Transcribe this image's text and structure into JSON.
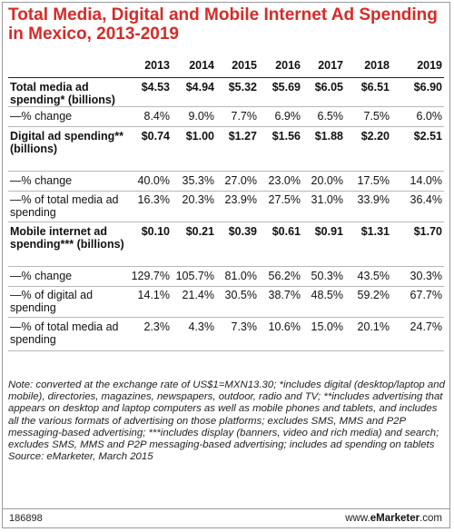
{
  "chart_data": {
    "type": "table",
    "title": "Total Media, Digital and Mobile Internet Ad Spending in Mexico, 2013-2019",
    "columns": [
      "2013",
      "2014",
      "2015",
      "2016",
      "2017",
      "2018",
      "2019"
    ],
    "rows": [
      {
        "label": "Total media ad spending* (billions)",
        "values": [
          "$4.53",
          "$4.94",
          "$5.32",
          "$5.69",
          "$6.05",
          "$6.51",
          "$6.90"
        ]
      },
      {
        "label": "—% change",
        "values": [
          "8.4%",
          "9.0%",
          "7.7%",
          "6.9%",
          "6.5%",
          "7.5%",
          "6.0%"
        ]
      },
      {
        "label": "Digital ad spending** (billions)",
        "values": [
          "$0.74",
          "$1.00",
          "$1.27",
          "$1.56",
          "$1.88",
          "$2.20",
          "$2.51"
        ]
      },
      {
        "label": "—% change",
        "values": [
          "40.0%",
          "35.3%",
          "27.0%",
          "23.0%",
          "20.0%",
          "17.5%",
          "14.0%"
        ]
      },
      {
        "label": "—% of total media ad spending",
        "values": [
          "16.3%",
          "20.3%",
          "23.9%",
          "27.5%",
          "31.0%",
          "33.9%",
          "36.4%"
        ]
      },
      {
        "label": "Mobile internet ad spending*** (billions)",
        "values": [
          "$0.10",
          "$0.21",
          "$0.39",
          "$0.61",
          "$0.91",
          "$1.31",
          "$1.70"
        ]
      },
      {
        "label": "—% change",
        "values": [
          "129.7%",
          "105.7%",
          "81.0%",
          "56.2%",
          "50.3%",
          "43.5%",
          "30.3%"
        ]
      },
      {
        "label": "—% of digital ad spending",
        "values": [
          "14.1%",
          "21.4%",
          "30.5%",
          "38.7%",
          "48.5%",
          "59.2%",
          "67.7%"
        ]
      },
      {
        "label": "—% of total media ad spending",
        "values": [
          "2.3%",
          "4.3%",
          "7.3%",
          "10.6%",
          "15.0%",
          "20.1%",
          "24.7%"
        ]
      }
    ],
    "note": "Note: converted at the exchange rate of US$1=MXN13.30; *includes digital (desktop/laptop and mobile), directories, magazines, newspapers, outdoor, radio and TV; **includes advertising that appears on desktop and laptop computers as well as mobile phones and tablets, and includes all the various formats of advertising on those platforms; excludes SMS, MMS and P2P messaging-based advertising; ***includes display (banners, video and rich media) and search; excludes SMS, MMS and P2P messaging-based advertising; includes ad spending on tablets",
    "source": "Source: eMarketer, March 2015"
  },
  "footer": {
    "chart_id": "186898",
    "brand_prefix": "www.",
    "brand_name": "eMarketer",
    "brand_suffix": ".com"
  },
  "colors": {
    "title": "#d62b28"
  }
}
